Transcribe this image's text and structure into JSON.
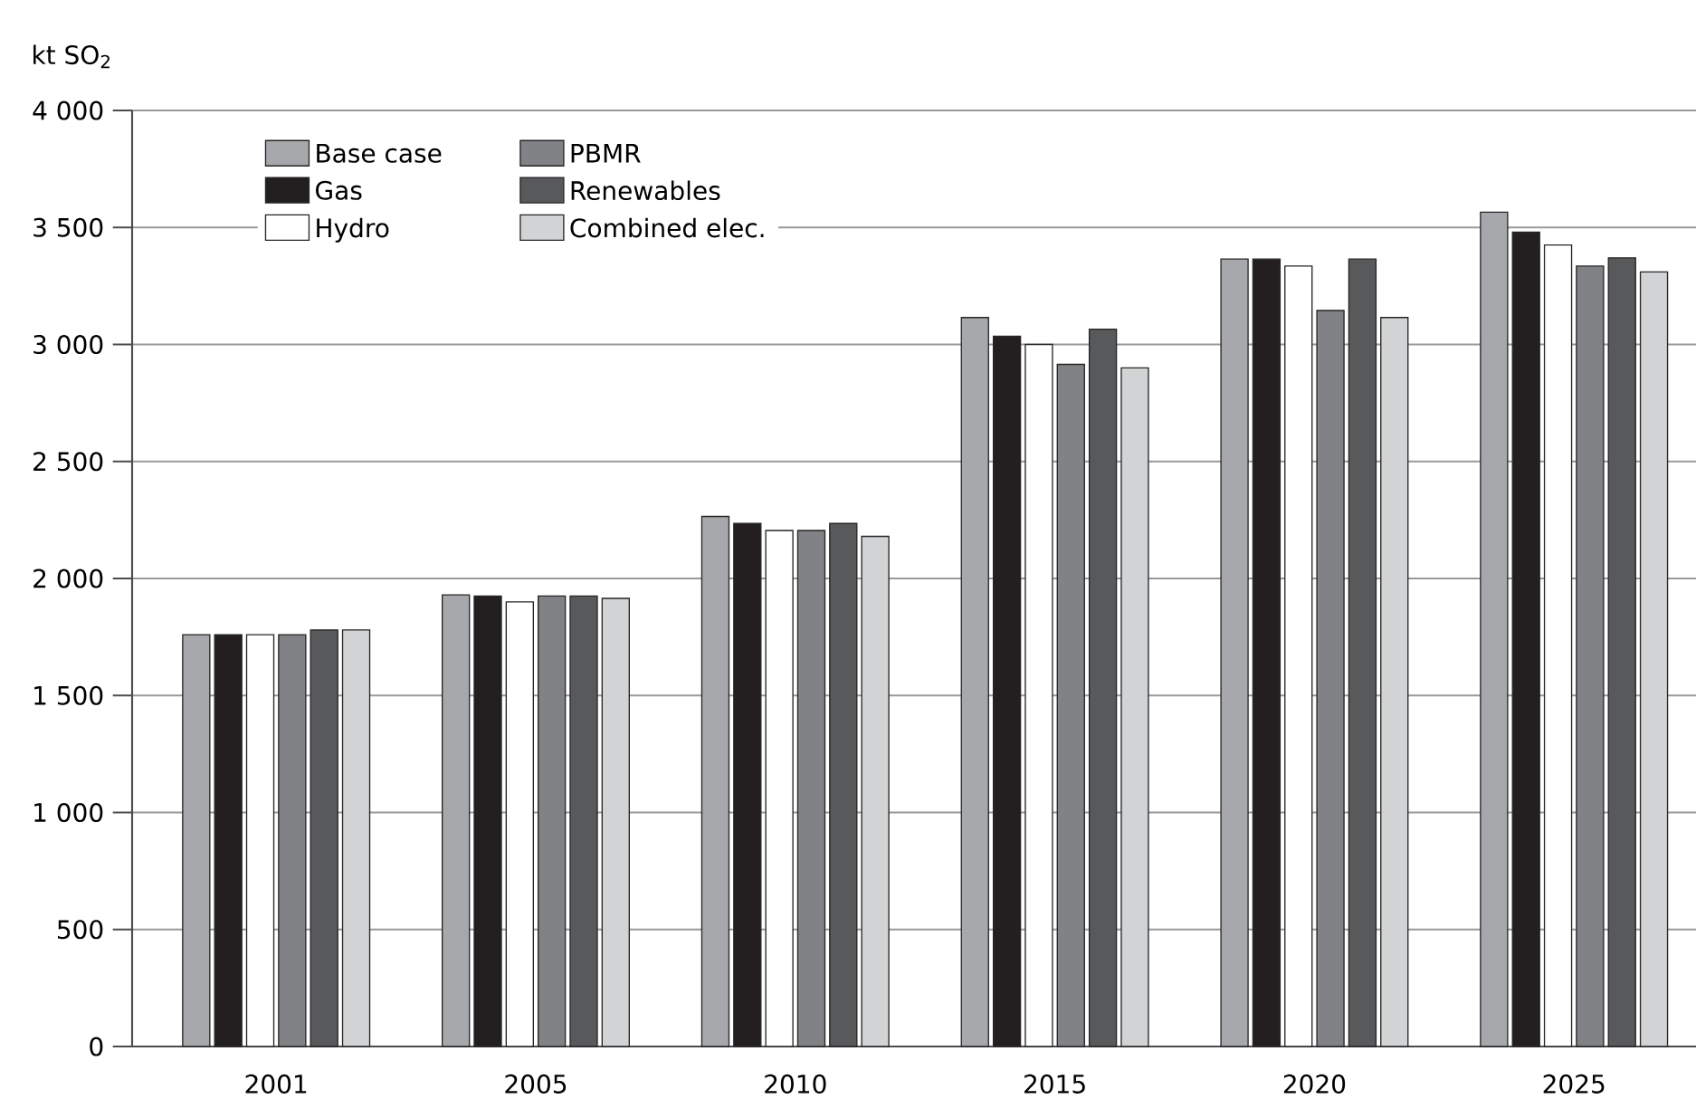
{
  "chart_data": {
    "type": "bar",
    "ylabel": "kt SO$_{2}$",
    "categories": [
      "2001",
      "2005",
      "2010",
      "2015",
      "2020",
      "2025"
    ],
    "series": [
      {
        "name": "Base case",
        "color": "#a7a8ab",
        "values": [
          1760,
          1930,
          2265,
          3115,
          3365,
          3565
        ]
      },
      {
        "name": "Gas",
        "color": "#231f20",
        "values": [
          1760,
          1925,
          2235,
          3035,
          3365,
          3480
        ]
      },
      {
        "name": "Hydro",
        "color": "#ffffff",
        "values": [
          1760,
          1900,
          2205,
          3000,
          3335,
          3425
        ]
      },
      {
        "name": "PBMR",
        "color": "#808285",
        "values": [
          1760,
          1925,
          2205,
          2915,
          3145,
          3335
        ]
      },
      {
        "name": "Renewables",
        "color": "#58595b",
        "values": [
          1780,
          1925,
          2235,
          3065,
          3365,
          3370
        ]
      },
      {
        "name": "Combined elec.",
        "color": "#d1d3d4",
        "values": [
          1780,
          1915,
          2180,
          2900,
          3115,
          3310
        ]
      }
    ],
    "ylim": [
      0,
      4000
    ],
    "yticks": [
      0,
      500,
      {
        "value": 1000,
        "label": "1 000"
      },
      {
        "value": 1500,
        "label": "1 500"
      },
      {
        "value": 2000,
        "label": "2 000"
      },
      {
        "value": 2500,
        "label": "2 500"
      },
      {
        "value": 3000,
        "label": "3 000"
      },
      {
        "value": 3500,
        "label": "3 500"
      },
      {
        "value": 4000,
        "label": "4 000"
      }
    ],
    "grid": "y",
    "legend": "top left"
  }
}
